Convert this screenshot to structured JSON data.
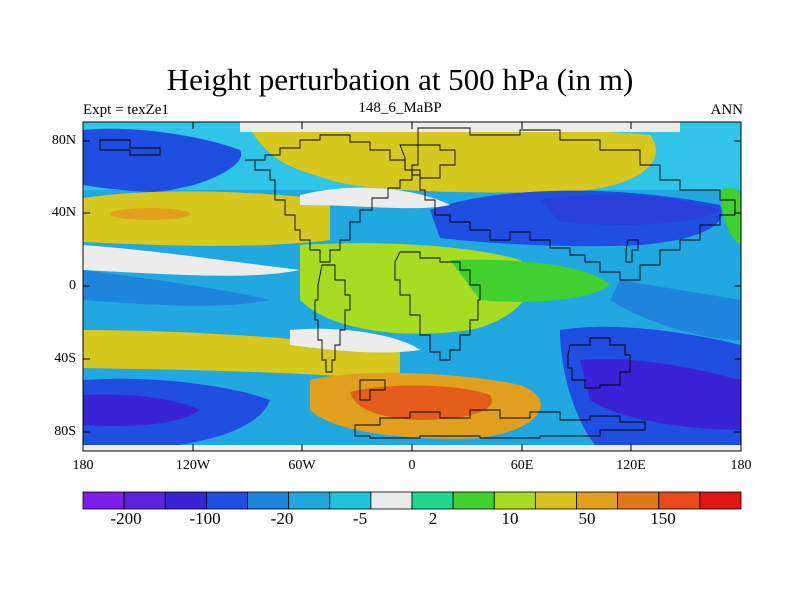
{
  "title": "Height perturbation at 500 hPa (in m)",
  "left_label": "Expt = texZe1",
  "center_label": "148_6_MaBP",
  "right_label": "ANN",
  "map": {
    "projection": "cylindrical equidistant",
    "lon_range": [
      -180,
      180
    ],
    "lat_range": [
      -90,
      90
    ],
    "y_ticks": [
      "80N",
      "40N",
      "0",
      "40S",
      "80S"
    ],
    "x_ticks": [
      "180",
      "120W",
      "60W",
      "0",
      "60E",
      "120E",
      "180"
    ]
  },
  "colorbar": {
    "labels": [
      "-200",
      "-100",
      "-20",
      "-5",
      "2",
      "10",
      "50",
      "150"
    ],
    "colors": [
      "#7a1ee8",
      "#5a23dc",
      "#3a22d6",
      "#1f4ee0",
      "#1e84dc",
      "#20a8dc",
      "#1fc3dc",
      "#eaeaea",
      "#22d88e",
      "#40d030",
      "#a8dc20",
      "#d8c01e",
      "#e0a01e",
      "#e2781c",
      "#e44a1a",
      "#e01616"
    ]
  },
  "colors": {
    "deep_blue": "#1f3fd8",
    "blue": "#2a6fe0",
    "light_blue": "#22a8e0",
    "cyan": "#2fc4e8",
    "white": "#ececec",
    "green": "#3fd24a",
    "yellow_green": "#a6dc22",
    "yellow": "#d6c81e",
    "orange": "#e0a01e",
    "red_orange": "#e25e1a",
    "purple": "#4a22d8"
  }
}
